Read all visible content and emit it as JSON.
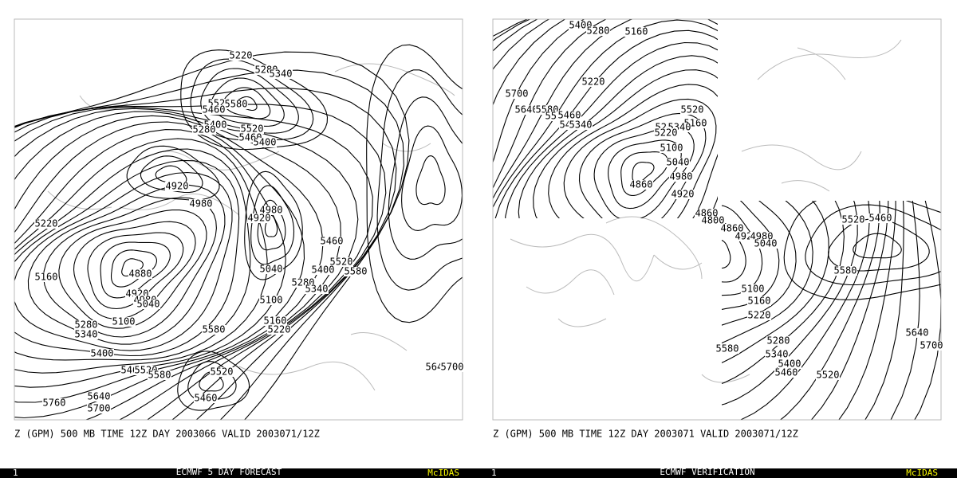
{
  "panels": [
    {
      "caption": "Z (GPM) 500 MB TIME 12Z DAY 2003066 VALID 2003071/12Z",
      "footer_number": "1",
      "footer_title": "ECMWF 5 DAY FORECAST",
      "footer_brand": "McIDAS",
      "contour_labels": [
        "5220",
        "5280",
        "5340",
        "5520",
        "5580",
        "5460",
        "5400",
        "5280",
        "5520",
        "5460",
        "5400",
        "4920",
        "4980",
        "4980",
        "4920",
        "5220",
        "5460",
        "5520",
        "5040",
        "5400",
        "5580",
        "4880",
        "5160",
        "5280",
        "5340",
        "4920",
        "4980",
        "5040",
        "5100",
        "5100",
        "5280",
        "5160",
        "5340",
        "5220",
        "5580",
        "5400",
        "5460",
        "5520",
        "5580",
        "5520",
        "5640",
        "5700",
        "5460",
        "5640",
        "5760",
        "5700"
      ]
    },
    {
      "caption": "Z (GPM) 500 MB TIME 12Z DAY 2003071 VALID 2003071/12Z",
      "footer_number": "1",
      "footer_title": "ECMWF VERIFICATION",
      "footer_brand": "McIDAS",
      "contour_labels": [
        "5400",
        "5280",
        "5160",
        "5700",
        "5220",
        "5640",
        "5580",
        "5520",
        "5460",
        "5400",
        "5340",
        "5520",
        "5160",
        "5280",
        "5340",
        "5220",
        "5100",
        "5040",
        "4980",
        "4860",
        "4920",
        "4860",
        "4800",
        "4860",
        "4920",
        "4980",
        "5040",
        "5520",
        "5460",
        "5580",
        "5100",
        "5160",
        "5220",
        "5280",
        "5340",
        "5400",
        "5460",
        "5520",
        "5580",
        "5640",
        "5700"
      ]
    }
  ]
}
